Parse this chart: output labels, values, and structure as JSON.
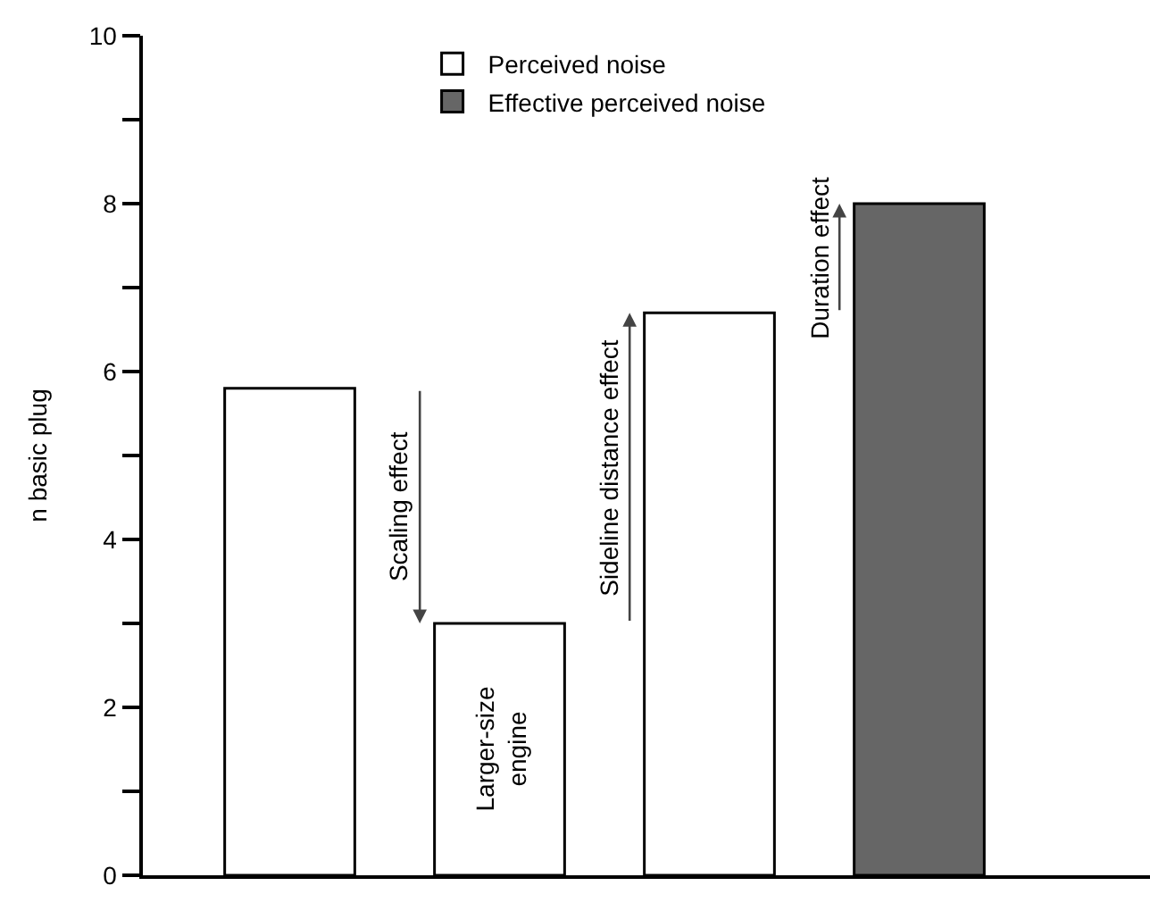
{
  "chart_data": {
    "type": "bar",
    "ylabel": "n basic plug",
    "categories": [
      null,
      "Larger-size engine",
      null,
      null
    ],
    "series": [
      {
        "name": "Perceived noise",
        "color": "#ffffff",
        "values": [
          5.8,
          3.0,
          6.7,
          null
        ]
      },
      {
        "name": "Effective perceived noise",
        "color": "#666666",
        "values": [
          null,
          null,
          null,
          8.0
        ]
      }
    ],
    "ylim": [
      0,
      10
    ],
    "yticks": [
      0,
      {
        "value": 1,
        "label": null
      },
      2,
      {
        "value": 3,
        "label": null
      },
      4,
      {
        "value": 5,
        "label": null
      },
      6,
      {
        "value": 7,
        "label": null
      },
      8,
      {
        "value": 9,
        "label": null
      },
      10
    ],
    "annotations": [
      "Scaling effect",
      "Sideline distance effect",
      "Duration effect"
    ],
    "tick_labels": "y",
    "grid": false,
    "legend": "top"
  }
}
